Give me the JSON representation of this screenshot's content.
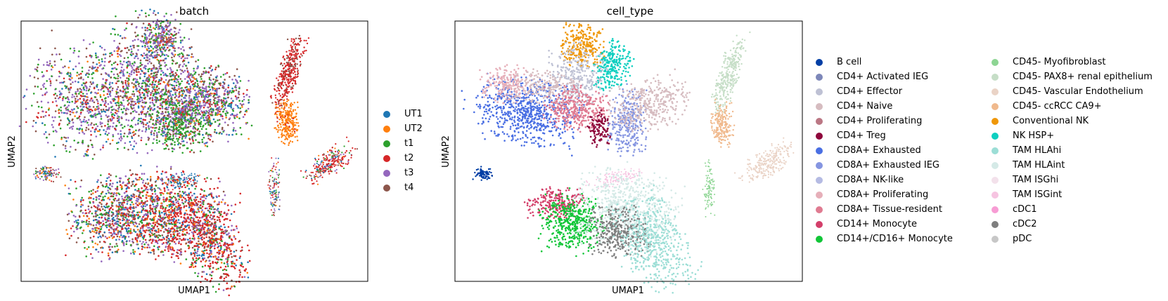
{
  "chart_data": [
    {
      "type": "scatter",
      "title": "batch",
      "xlabel": "UMAP1",
      "ylabel": "UMAP2",
      "grid": false,
      "legend_position": "right",
      "categories": [
        "UT1",
        "UT2",
        "t1",
        "t2",
        "t3",
        "t4"
      ],
      "colors": [
        "#1f77b4",
        "#ff7f0e",
        "#2ca02c",
        "#d62728",
        "#9467bd",
        "#8c564b"
      ]
    },
    {
      "type": "scatter",
      "title": "cell_type",
      "xlabel": "UMAP1",
      "ylabel": "UMAP2",
      "grid": false,
      "legend_position": "right",
      "categories": [
        "B cell",
        "CD4+ Activated IEG",
        "CD4+ Effector",
        "CD4+ Naive",
        "CD4+ Proliferating",
        "CD4+ Treg",
        "CD8A+ Exhausted",
        "CD8A+ Exhausted IEG",
        "CD8A+ NK-like",
        "CD8A+ Proliferating",
        "CD8A+ Tissue-resident",
        "CD14+ Monocyte",
        "CD14+/CD16+ Monocyte",
        "CD45- Myofibroblast",
        "CD45- PAX8+ renal epithelium",
        "CD45- Vascular Endothelium",
        "CD45- ccRCC CA9+",
        "Conventional NK",
        "NK HSP+",
        "TAM HLAhi",
        "TAM HLAint",
        "TAM ISGhi",
        "TAM ISGint",
        "cDC1",
        "cDC2",
        "pDC"
      ],
      "colors": [
        "#023fa5",
        "#7d87b9",
        "#bec1d4",
        "#d6bcc0",
        "#bb7784",
        "#8e063b",
        "#4a6fe3",
        "#8595e1",
        "#b5bbe3",
        "#e6afb9",
        "#e07b91",
        "#d33f6a",
        "#11c638",
        "#8dd593",
        "#c6dec7",
        "#ead3c6",
        "#f0b98d",
        "#ef9708",
        "#0fcfc0",
        "#9cded6",
        "#d5eae7",
        "#f3e1eb",
        "#f6c4e1",
        "#f79cd4",
        "#7f7f7f",
        "#c7c7c7"
      ]
    }
  ]
}
